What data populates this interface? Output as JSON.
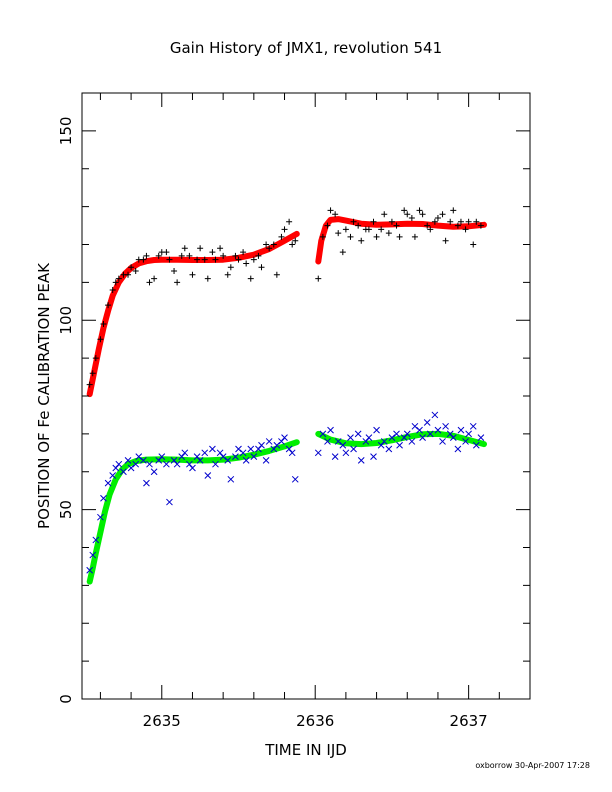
{
  "chart_data": {
    "type": "scatter",
    "title": "Gain History of JMX1, revolution 541",
    "xlabel": "TIME IN IJD",
    "ylabel": "POSITION OF Fe CALIBRATION PEAK",
    "xlim": [
      2634.48,
      2637.4
    ],
    "ylim": [
      0,
      160
    ],
    "x_ticks": [
      {
        "value": 2635,
        "label": "2635"
      },
      {
        "value": 2636,
        "label": "2636"
      },
      {
        "value": 2637,
        "label": "2637"
      }
    ],
    "y_ticks": [
      {
        "value": 0,
        "label": "0"
      },
      {
        "value": 50,
        "label": "50"
      },
      {
        "value": 100,
        "label": "100"
      },
      {
        "value": 150,
        "label": "150"
      }
    ],
    "grid": false,
    "footnote": "oxborrow 30-Apr-2007 17:28",
    "colors": {
      "upper_points": "#000000",
      "upper_fit": "#ff0000",
      "lower_points": "#0000cc",
      "lower_fit": "#00ee00"
    },
    "series": [
      {
        "marker": "plus",
        "role": "upper_points",
        "x": [
          2634.53,
          2634.55,
          2634.57,
          2634.6,
          2634.62,
          2634.65,
          2634.68,
          2634.7,
          2634.72,
          2634.75,
          2634.78,
          2634.8,
          2634.83,
          2634.85,
          2634.88,
          2634.9,
          2634.92,
          2634.95,
          2634.98,
          2635.0,
          2635.03,
          2635.05,
          2635.08,
          2635.1,
          2635.13,
          2635.15,
          2635.18,
          2635.2,
          2635.23,
          2635.25,
          2635.28,
          2635.3,
          2635.33,
          2635.35,
          2635.38,
          2635.4,
          2635.43,
          2635.45,
          2635.48,
          2635.5,
          2635.53,
          2635.55,
          2635.58,
          2635.6,
          2635.63,
          2635.65,
          2635.68,
          2635.7,
          2635.73,
          2635.75,
          2635.78,
          2635.8,
          2635.83,
          2635.85,
          2635.87,
          2636.02,
          2636.05,
          2636.08,
          2636.1,
          2636.13,
          2636.15,
          2636.18,
          2636.2,
          2636.23,
          2636.25,
          2636.28,
          2636.3,
          2636.33,
          2636.35,
          2636.38,
          2636.4,
          2636.43,
          2636.45,
          2636.48,
          2636.5,
          2636.53,
          2636.55,
          2636.58,
          2636.6,
          2636.63,
          2636.65,
          2636.68,
          2636.7,
          2636.73,
          2636.75,
          2636.78,
          2636.8,
          2636.83,
          2636.85,
          2636.88,
          2636.9,
          2636.93,
          2636.95,
          2636.98,
          2637.0,
          2637.03,
          2637.05,
          2637.08
        ],
        "y": [
          83,
          86,
          90,
          95,
          99,
          104,
          108,
          110,
          111,
          112,
          112,
          114,
          113,
          116,
          116,
          117,
          110,
          111,
          117,
          118,
          118,
          116,
          113,
          110,
          117,
          119,
          117,
          112,
          116,
          119,
          116,
          111,
          118,
          116,
          119,
          117,
          112,
          114,
          117,
          116,
          118,
          115,
          111,
          116,
          117,
          114,
          120,
          119,
          120,
          112,
          122,
          124,
          126,
          120,
          121,
          111,
          122,
          125,
          129,
          128,
          123,
          118,
          124,
          122,
          126,
          125,
          121,
          124,
          124,
          126,
          122,
          124,
          128,
          123,
          126,
          125,
          122,
          129,
          128,
          127,
          122,
          129,
          128,
          125,
          124,
          126,
          127,
          128,
          121,
          126,
          129,
          125,
          126,
          124,
          126,
          120,
          126,
          125
        ]
      },
      {
        "marker": "line",
        "role": "upper_fit",
        "x": [
          2634.53,
          2634.56,
          2634.59,
          2634.62,
          2634.65,
          2634.68,
          2634.72,
          2634.76,
          2634.8,
          2634.85,
          2634.9,
          2634.95,
          2635.0,
          2635.1,
          2635.2,
          2635.3,
          2635.4,
          2635.5,
          2635.6,
          2635.7,
          2635.8,
          2635.88
        ],
        "y": [
          80.5,
          86.5,
          92.5,
          98,
          102.5,
          106.5,
          110,
          112.3,
          113.8,
          115,
          115.6,
          115.9,
          116,
          116,
          115.9,
          115.9,
          116,
          116.5,
          117.3,
          118.8,
          121,
          122.8
        ]
      },
      {
        "marker": "line",
        "role": "upper_fit",
        "x": [
          2636.02,
          2636.04,
          2636.07,
          2636.1,
          2636.15,
          2636.2,
          2636.3,
          2636.4,
          2636.5,
          2636.6,
          2636.7,
          2636.8,
          2636.9,
          2637.0,
          2637.1
        ],
        "y": [
          115.5,
          121,
          125,
          126.5,
          126.7,
          126.3,
          125.5,
          125.2,
          125.3,
          125.5,
          125.4,
          125,
          124.7,
          124.8,
          125.2
        ]
      },
      {
        "marker": "cross",
        "role": "lower_points",
        "x": [
          2634.53,
          2634.55,
          2634.57,
          2634.6,
          2634.62,
          2634.65,
          2634.68,
          2634.7,
          2634.72,
          2634.75,
          2634.78,
          2634.8,
          2634.83,
          2634.85,
          2634.88,
          2634.9,
          2634.92,
          2634.95,
          2634.98,
          2635.0,
          2635.03,
          2635.05,
          2635.08,
          2635.1,
          2635.13,
          2635.15,
          2635.18,
          2635.2,
          2635.23,
          2635.25,
          2635.28,
          2635.3,
          2635.33,
          2635.35,
          2635.38,
          2635.4,
          2635.43,
          2635.45,
          2635.48,
          2635.5,
          2635.53,
          2635.55,
          2635.58,
          2635.6,
          2635.63,
          2635.65,
          2635.68,
          2635.7,
          2635.73,
          2635.75,
          2635.78,
          2635.8,
          2635.83,
          2635.85,
          2635.87,
          2636.02,
          2636.05,
          2636.08,
          2636.1,
          2636.13,
          2636.15,
          2636.18,
          2636.2,
          2636.23,
          2636.25,
          2636.28,
          2636.3,
          2636.33,
          2636.35,
          2636.38,
          2636.4,
          2636.43,
          2636.45,
          2636.48,
          2636.5,
          2636.53,
          2636.55,
          2636.58,
          2636.6,
          2636.63,
          2636.65,
          2636.68,
          2636.7,
          2636.73,
          2636.75,
          2636.78,
          2636.8,
          2636.83,
          2636.85,
          2636.88,
          2636.9,
          2636.93,
          2636.95,
          2636.98,
          2637.0,
          2637.03,
          2637.05,
          2637.08
        ],
        "y": [
          34,
          38,
          42,
          48,
          53,
          57,
          59,
          61,
          62,
          60,
          63,
          61,
          62,
          64,
          63,
          57,
          62,
          60,
          63,
          64,
          62,
          52,
          63,
          62,
          64,
          65,
          62,
          61,
          64,
          63,
          65,
          59,
          66,
          62,
          65,
          64,
          63,
          58,
          64,
          66,
          65,
          63,
          66,
          64,
          66,
          67,
          63,
          68,
          66,
          67,
          68,
          69,
          66,
          65,
          58,
          65,
          70,
          68,
          71,
          64,
          68,
          67,
          65,
          69,
          66,
          70,
          63,
          68,
          69,
          64,
          71,
          67,
          68,
          66,
          69,
          70,
          67,
          69,
          70,
          68,
          72,
          71,
          69,
          73,
          70,
          75,
          71,
          68,
          72,
          70,
          69,
          66,
          71,
          68,
          70,
          72,
          67,
          69
        ]
      },
      {
        "marker": "line",
        "role": "lower_fit",
        "x": [
          2634.53,
          2634.55,
          2634.57,
          2634.6,
          2634.63,
          2634.66,
          2634.7,
          2634.74,
          2634.78,
          2634.83,
          2634.9,
          2635.0,
          2635.1,
          2635.2,
          2635.3,
          2635.4,
          2635.5,
          2635.6,
          2635.7,
          2635.8,
          2635.88
        ],
        "y": [
          31,
          34.5,
          38.5,
          44,
          49.5,
          54,
          58,
          60.5,
          62,
          62.8,
          63.2,
          63.3,
          63.2,
          63,
          63,
          63.2,
          63.7,
          64.5,
          65.5,
          66.7,
          67.8
        ]
      },
      {
        "marker": "line",
        "role": "lower_fit",
        "x": [
          2636.02,
          2636.1,
          2636.2,
          2636.3,
          2636.4,
          2636.5,
          2636.6,
          2636.7,
          2636.8,
          2636.9,
          2637.0,
          2637.1
        ],
        "y": [
          70,
          68.5,
          67.5,
          67.3,
          67.6,
          68.3,
          69.2,
          69.9,
          70,
          69.5,
          68.4,
          67.3
        ]
      }
    ]
  }
}
